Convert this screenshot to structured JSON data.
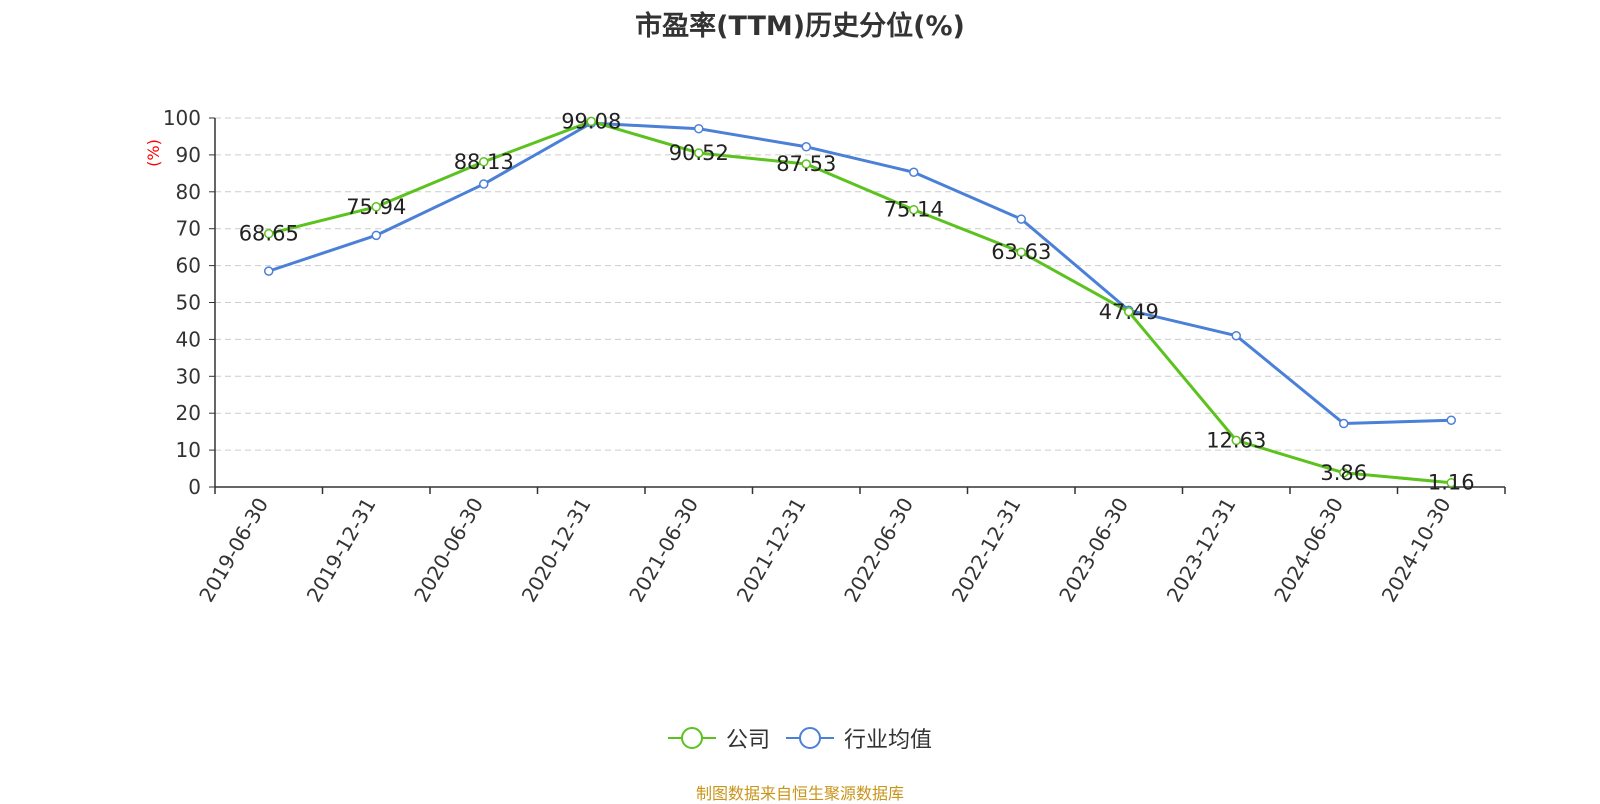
{
  "title": "市盈率(TTM)历史分位(%)",
  "source": "制图数据来自恒生聚源数据库",
  "colors": {
    "company": "#5bc21e",
    "industry": "#4b80d8",
    "axis": "#333333",
    "grid": "#cccccc",
    "ylabel": "#ff0000",
    "source": "#c8951a"
  },
  "chart_data": {
    "type": "line",
    "title": "市盈率(TTM)历史分位(%)",
    "ylabel": "(%)",
    "xlabel": "",
    "ylim": [
      0,
      100
    ],
    "yticks": [
      0,
      10,
      20,
      30,
      40,
      50,
      60,
      70,
      80,
      90,
      100
    ],
    "grid": "horizontal-dashed",
    "legend_position": "bottom",
    "categories": [
      "2019-06-30",
      "2019-12-31",
      "2020-06-30",
      "2020-12-31",
      "2021-06-30",
      "2021-12-31",
      "2022-06-30",
      "2022-12-31",
      "2023-06-30",
      "2023-12-31",
      "2024-06-30",
      "2024-10-30"
    ],
    "series": [
      {
        "name": "公司",
        "color": "#5bc21e",
        "values": [
          68.65,
          75.94,
          88.13,
          99.08,
          90.52,
          87.53,
          75.14,
          63.63,
          47.49,
          12.63,
          3.86,
          1.16
        ],
        "labels": [
          "68.65",
          "75.94",
          "88.13",
          "99.08",
          "90.52",
          "87.53",
          "75.14",
          "63.63",
          "47.49",
          "12.63",
          "3.86",
          "1.16"
        ]
      },
      {
        "name": "行业均值",
        "color": "#4b80d8",
        "values": [
          58.5,
          68.2,
          82.1,
          98.6,
          97.1,
          92.2,
          85.3,
          72.6,
          47.9,
          41.0,
          17.2,
          18.1
        ]
      }
    ]
  }
}
